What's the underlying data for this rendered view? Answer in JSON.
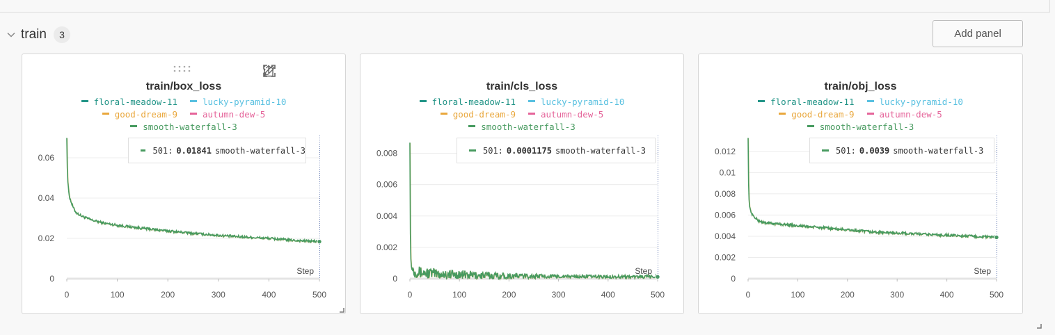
{
  "section": {
    "title": "train",
    "count": "3",
    "add_panel_label": "Add panel"
  },
  "colors": {
    "floral-meadow-11": "#229487",
    "lucky-pyramid-10": "#58c0e0",
    "good-dream-9": "#e9a73c",
    "autumn-dew-5": "#e5649a",
    "smooth-waterfall-3": "#479a5f"
  },
  "chart_data": [
    {
      "type": "line",
      "title": "train/box_loss",
      "xlabel": "Step",
      "ylabel": "",
      "xlim": [
        0,
        500
      ],
      "ylim": [
        0,
        0.07
      ],
      "x_ticks": [
        "0",
        "100",
        "200",
        "300",
        "400",
        "500"
      ],
      "y_ticks": [
        "0",
        "0.02",
        "0.04",
        "0.06"
      ],
      "y_tick_values": [
        0,
        0.02,
        0.04,
        0.06
      ],
      "legend": [
        [
          "floral-meadow-11",
          "lucky-pyramid-10"
        ],
        [
          "good-dream-9",
          "autumn-dew-5"
        ],
        [
          "smooth-waterfall-3"
        ]
      ],
      "series": [
        {
          "name": "smooth-waterfall-3",
          "x": [
            0,
            1,
            2,
            4,
            6,
            10,
            15,
            20,
            30,
            50,
            75,
            100,
            150,
            200,
            250,
            300,
            350,
            400,
            450,
            500
          ],
          "y": [
            0.07,
            0.055,
            0.048,
            0.043,
            0.04,
            0.037,
            0.034,
            0.0325,
            0.031,
            0.029,
            0.0275,
            0.0265,
            0.025,
            0.0237,
            0.0225,
            0.0215,
            0.0207,
            0.02,
            0.019,
            0.0184
          ]
        }
      ],
      "noise": 0.0006,
      "tooltip": {
        "step": "501:",
        "value": "0.01841",
        "series": "smooth-waterfall-3"
      }
    },
    {
      "type": "line",
      "title": "train/cls_loss",
      "xlabel": "Step",
      "ylabel": "",
      "xlim": [
        0,
        500
      ],
      "ylim": [
        0,
        0.009
      ],
      "x_ticks": [
        "0",
        "100",
        "200",
        "300",
        "400",
        "500"
      ],
      "y_ticks": [
        "0",
        "0.002",
        "0.004",
        "0.006",
        "0.008"
      ],
      "y_tick_values": [
        0,
        0.002,
        0.004,
        0.006,
        0.008
      ],
      "legend": [
        [
          "floral-meadow-11",
          "lucky-pyramid-10"
        ],
        [
          "good-dream-9",
          "autumn-dew-5"
        ],
        [
          "smooth-waterfall-3"
        ]
      ],
      "series": [
        {
          "name": "smooth-waterfall-3",
          "x": [
            0,
            1,
            2,
            3,
            5,
            10,
            20,
            40,
            60,
            100,
            150,
            200,
            300,
            400,
            500
          ],
          "y": [
            0.0088,
            0.003,
            0.0012,
            0.0008,
            0.0006,
            0.0005,
            0.0004,
            0.00035,
            0.0003,
            0.00025,
            0.0002,
            0.00018,
            0.00015,
            0.00013,
            0.00012
          ]
        }
      ],
      "noise": 0.00025,
      "tooltip": {
        "step": "501:",
        "value": "0.0001175",
        "series": "smooth-waterfall-3"
      }
    },
    {
      "type": "line",
      "title": "train/obj_loss",
      "xlabel": "Step",
      "ylabel": "",
      "xlim": [
        0,
        500
      ],
      "ylim": [
        0,
        0.0133
      ],
      "x_ticks": [
        "0",
        "100",
        "200",
        "300",
        "400",
        "500"
      ],
      "y_ticks": [
        "0",
        "0.002",
        "0.004",
        "0.006",
        "0.008",
        "0.01",
        "0.012"
      ],
      "y_tick_values": [
        0,
        0.002,
        0.004,
        0.006,
        0.008,
        0.01,
        0.012
      ],
      "legend": [
        [
          "floral-meadow-11",
          "lucky-pyramid-10"
        ],
        [
          "good-dream-9",
          "autumn-dew-5"
        ],
        [
          "smooth-waterfall-3"
        ]
      ],
      "series": [
        {
          "name": "smooth-waterfall-3",
          "x": [
            0,
            1,
            2,
            3,
            5,
            8,
            12,
            20,
            30,
            50,
            100,
            150,
            200,
            250,
            300,
            350,
            400,
            450,
            500
          ],
          "y": [
            0.0133,
            0.009,
            0.0075,
            0.0068,
            0.0064,
            0.0061,
            0.0058,
            0.0055,
            0.0053,
            0.0052,
            0.005,
            0.0048,
            0.0046,
            0.0044,
            0.0043,
            0.0042,
            0.0041,
            0.004,
            0.0039
          ]
        }
      ],
      "noise": 0.00012,
      "tooltip": {
        "step": "501:",
        "value": "0.0039",
        "series": "smooth-waterfall-3"
      }
    }
  ]
}
